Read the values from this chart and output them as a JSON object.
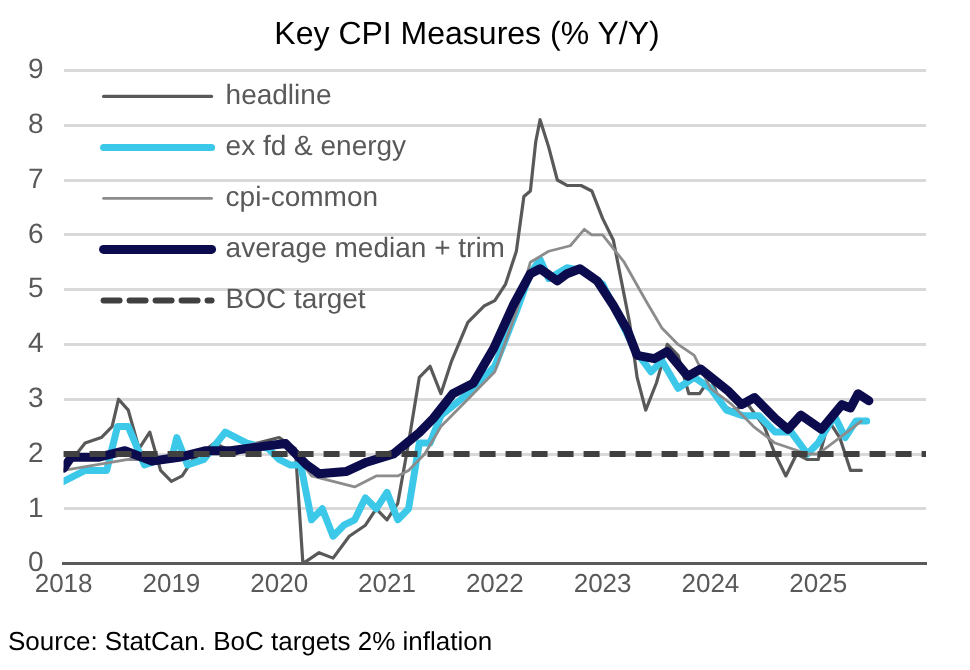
{
  "chart_data": {
    "type": "line",
    "title": "Key CPI Measures (% Y/Y)",
    "annotations": [
      "Source: StatCan. BoC targets 2% inflation"
    ],
    "xlim": [
      2018,
      2026
    ],
    "xticks": [
      2018,
      2019,
      2020,
      2021,
      2022,
      2023,
      2024,
      2025
    ],
    "ylim": [
      0,
      9
    ],
    "yticks": [
      0,
      1,
      2,
      3,
      4,
      5,
      6,
      7,
      8,
      9
    ],
    "grid": "y",
    "legend": "top left",
    "marker": "none",
    "line_style": "solid",
    "ref_lines": [
      {
        "axis": "y",
        "value": 2,
        "label": "BOC target",
        "color": "#404040",
        "line_style": "dashed"
      }
    ],
    "series": [
      {
        "name": "headline",
        "color": "#595959",
        "x": [
          2018.0,
          2018.2,
          2018.35,
          2018.45,
          2018.51,
          2018.6,
          2018.7,
          2018.8,
          2018.9,
          2019.0,
          2019.1,
          2019.2,
          2019.4,
          2019.6,
          2019.8,
          2020.0,
          2020.15,
          2020.22,
          2020.37,
          2020.5,
          2020.65,
          2020.8,
          2020.9,
          2021.0,
          2021.1,
          2021.2,
          2021.3,
          2021.4,
          2021.5,
          2021.6,
          2021.75,
          2021.9,
          2022.0,
          2022.1,
          2022.2,
          2022.27,
          2022.33,
          2022.38,
          2022.42,
          2022.5,
          2022.58,
          2022.67,
          2022.8,
          2022.9,
          2023.0,
          2023.1,
          2023.17,
          2023.25,
          2023.32,
          2023.4,
          2023.5,
          2023.6,
          2023.7,
          2023.8,
          2023.9,
          2024.0,
          2024.1,
          2024.2,
          2024.35,
          2024.5,
          2024.6,
          2024.7,
          2024.8,
          2024.9,
          2025.0,
          2025.1,
          2025.2,
          2025.3,
          2025.4
        ],
        "values": [
          1.7,
          2.2,
          2.3,
          2.5,
          3.0,
          2.8,
          2.1,
          2.4,
          1.7,
          1.5,
          1.6,
          1.9,
          2.2,
          2.0,
          2.2,
          2.3,
          2.1,
          0,
          0.2,
          0.1,
          0.5,
          0.7,
          1.0,
          0.8,
          1.1,
          2.2,
          3.4,
          3.6,
          3.1,
          3.7,
          4.4,
          4.7,
          4.8,
          5.1,
          5.7,
          6.7,
          6.8,
          7.7,
          8.1,
          7.6,
          7.0,
          6.9,
          6.9,
          6.8,
          6.3,
          5.9,
          5.2,
          4.4,
          3.4,
          2.8,
          3.3,
          4.0,
          3.8,
          3.1,
          3.1,
          3.4,
          2.9,
          2.8,
          2.9,
          2.5,
          2.0,
          1.6,
          2.0,
          1.9,
          1.9,
          2.6,
          2.3,
          1.7,
          1.7
        ]
      },
      {
        "name": "ex fd & energy",
        "color": "#3cc8e8",
        "x": [
          2018.0,
          2018.2,
          2018.4,
          2018.5,
          2018.6,
          2018.75,
          2018.9,
          2019.0,
          2019.05,
          2019.15,
          2019.3,
          2019.5,
          2019.7,
          2019.9,
          2020.0,
          2020.1,
          2020.2,
          2020.3,
          2020.4,
          2020.5,
          2020.6,
          2020.7,
          2020.8,
          2020.9,
          2021.0,
          2021.1,
          2021.2,
          2021.3,
          2021.4,
          2021.5,
          2021.75,
          2022.0,
          2022.2,
          2022.33,
          2022.42,
          2022.5,
          2022.67,
          2022.8,
          2023.0,
          2023.15,
          2023.3,
          2023.45,
          2023.55,
          2023.7,
          2023.85,
          2024.0,
          2024.15,
          2024.3,
          2024.45,
          2024.6,
          2024.75,
          2024.9,
          2025.0,
          2025.15,
          2025.25,
          2025.35,
          2025.45
        ],
        "values": [
          1.5,
          1.7,
          1.7,
          2.5,
          2.5,
          1.8,
          1.9,
          1.9,
          2.3,
          1.8,
          1.9,
          2.4,
          2.2,
          2.1,
          1.9,
          1.8,
          1.8,
          0.8,
          1.0,
          0.5,
          0.7,
          0.8,
          1.2,
          1.0,
          1.3,
          0.8,
          1.0,
          2.2,
          2.2,
          2.7,
          3.1,
          3.6,
          4.6,
          5.3,
          5.55,
          5.2,
          5.4,
          5.35,
          5.1,
          4.5,
          3.9,
          3.5,
          3.7,
          3.2,
          3.4,
          3.2,
          2.8,
          2.7,
          2.7,
          2.4,
          2.4,
          2.0,
          2.2,
          2.7,
          2.3,
          2.6,
          2.6
        ]
      },
      {
        "name": "cpi-common",
        "color": "#8c8c8c",
        "x": [
          2018.0,
          2018.3,
          2018.6,
          2019.0,
          2019.3,
          2019.6,
          2019.8,
          2020.0,
          2020.15,
          2020.3,
          2020.5,
          2020.7,
          2020.9,
          2021.1,
          2021.2,
          2021.35,
          2021.5,
          2021.75,
          2022.0,
          2022.2,
          2022.33,
          2022.5,
          2022.7,
          2022.83,
          2022.9,
          2023.0,
          2023.2,
          2023.4,
          2023.55,
          2023.7,
          2023.85,
          2024.0,
          2024.2,
          2024.4,
          2024.6,
          2024.75,
          2024.9,
          2025.0,
          2025.2,
          2025.4
        ],
        "values": [
          1.7,
          1.8,
          1.9,
          1.9,
          2.0,
          2.1,
          2.2,
          2.2,
          2.0,
          1.6,
          1.5,
          1.4,
          1.6,
          1.6,
          1.7,
          2.0,
          2.5,
          3.0,
          3.5,
          4.6,
          5.5,
          5.7,
          5.8,
          6.1,
          6.0,
          6.0,
          5.5,
          4.8,
          4.3,
          4.0,
          3.8,
          3.2,
          2.9,
          2.5,
          2.2,
          2.1,
          2.0,
          2.0,
          2.3,
          2.6
        ]
      },
      {
        "name": "average median + trim",
        "color": "#0b0b4d",
        "x": [
          2018.0,
          2018.07,
          2018.32,
          2018.57,
          2018.82,
          2019.07,
          2019.32,
          2019.55,
          2019.81,
          2020.06,
          2020.25,
          2020.37,
          2020.62,
          2020.81,
          2021.06,
          2021.3,
          2021.43,
          2021.61,
          2021.8,
          2021.99,
          2022.17,
          2022.33,
          2022.42,
          2022.58,
          2022.67,
          2022.79,
          2022.95,
          2023.1,
          2023.23,
          2023.32,
          2023.48,
          2023.6,
          2023.79,
          2023.91,
          2024.16,
          2024.29,
          2024.41,
          2024.6,
          2024.72,
          2024.84,
          2025.03,
          2025.22,
          2025.3,
          2025.37,
          2025.47
        ],
        "values": [
          1.74,
          1.94,
          1.94,
          2.06,
          1.87,
          1.94,
          2.06,
          2.06,
          2.13,
          2.19,
          1.81,
          1.64,
          1.68,
          1.85,
          2.0,
          2.39,
          2.65,
          3.1,
          3.29,
          3.93,
          4.71,
          5.29,
          5.38,
          5.16,
          5.29,
          5.38,
          5.16,
          4.71,
          4.26,
          3.8,
          3.74,
          3.87,
          3.42,
          3.55,
          3.16,
          2.9,
          3.03,
          2.65,
          2.45,
          2.71,
          2.45,
          2.9,
          2.84,
          3.1,
          2.97
        ]
      }
    ]
  }
}
